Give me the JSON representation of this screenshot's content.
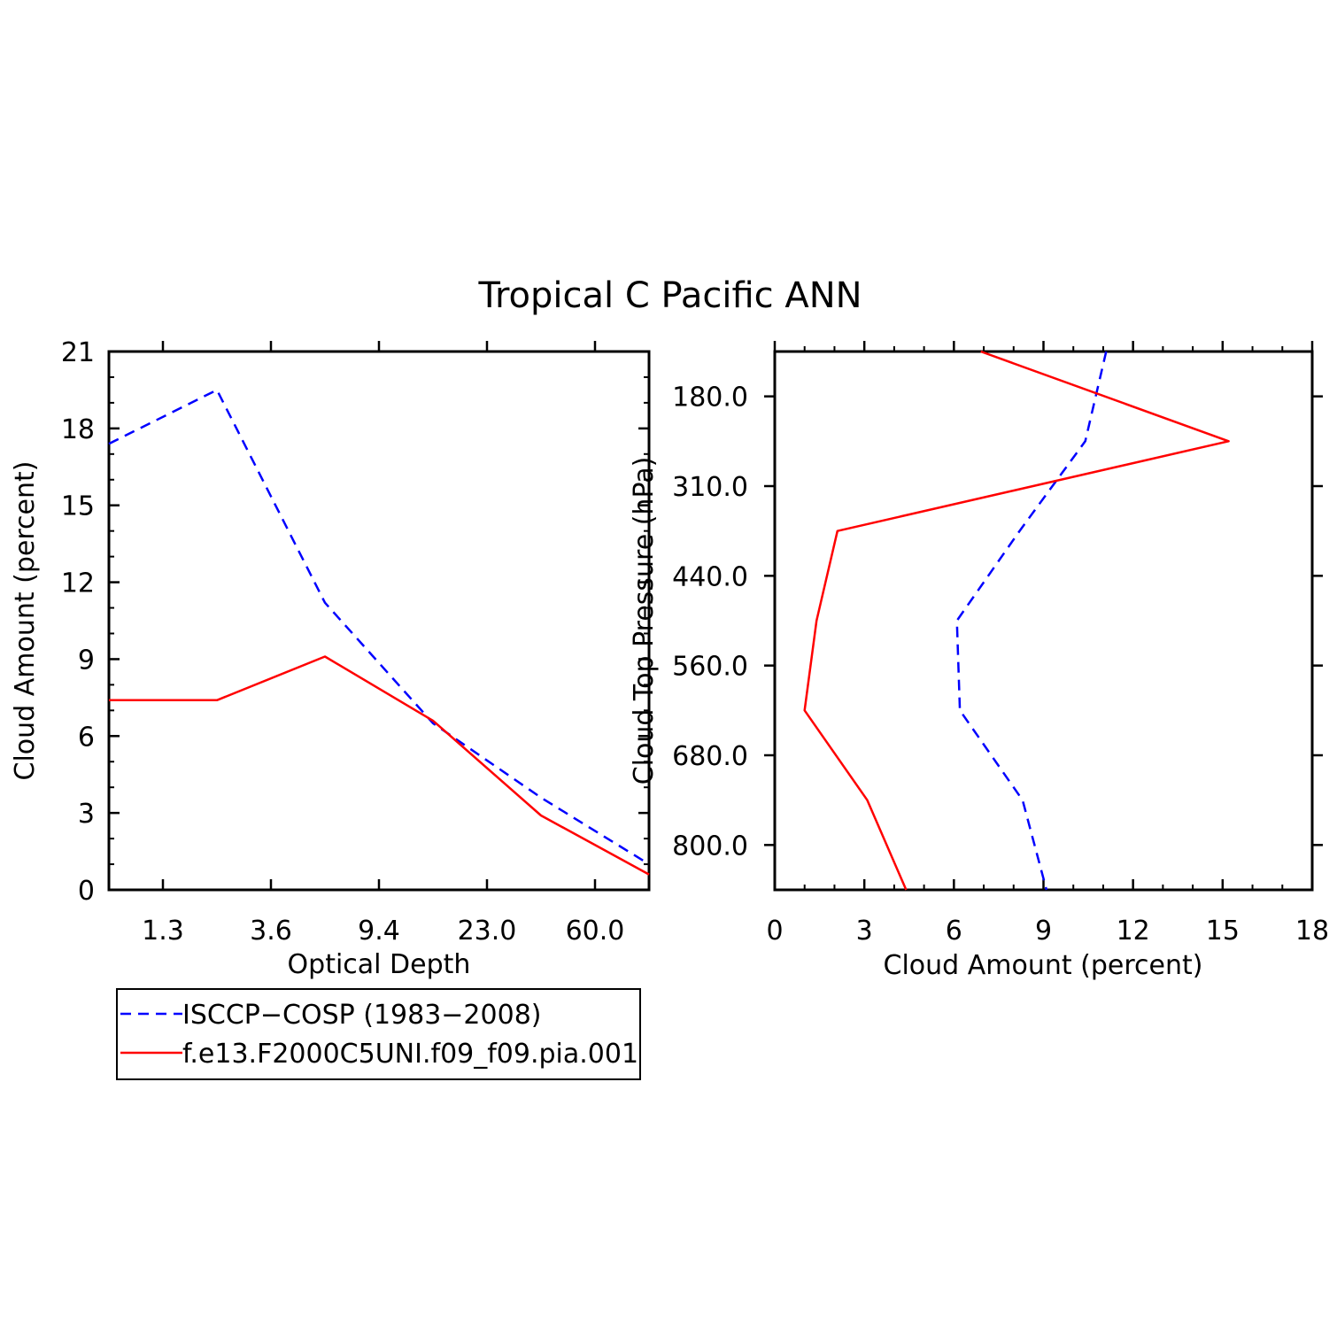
{
  "title": "Tropical C Pacific ANN",
  "colors": {
    "obs": "#0000ff",
    "model": "#ff0000",
    "axis": "#000000"
  },
  "legend": {
    "entries": [
      {
        "label": "ISCCP−COSP (1983−2008)",
        "color": "#0000ff",
        "style": "dashed"
      },
      {
        "label": "f.e13.F2000C5UNI.f09_f09.pia.001",
        "color": "#ff0000",
        "style": "solid"
      }
    ]
  },
  "chart_data": [
    {
      "type": "line",
      "title": "Tropical C Pacific ANN",
      "xlabel": "Optical Depth",
      "ylabel": "Cloud Amount (percent)",
      "x_categories": [
        "1.3",
        "3.6",
        "9.4",
        "23.0",
        "60.0"
      ],
      "x_index_range": [
        0,
        5
      ],
      "ylim": [
        0,
        21
      ],
      "y_ticks": [
        0,
        3,
        6,
        9,
        12,
        15,
        18,
        21
      ],
      "series": [
        {
          "name": "ISCCP−COSP (1983−2008)",
          "x": [
            0,
            1,
            2,
            3,
            4,
            5
          ],
          "values": [
            17.4,
            19.5,
            11.2,
            6.5,
            3.6,
            1.0
          ]
        },
        {
          "name": "f.e13.F2000C5UNI.f09_f09.pia.001",
          "x": [
            0,
            1,
            2,
            3,
            4,
            5
          ],
          "values": [
            7.4,
            7.4,
            9.1,
            6.6,
            2.9,
            0.6
          ]
        }
      ]
    },
    {
      "type": "line",
      "xlabel": "Cloud Amount (percent)",
      "ylabel": "Cloud Top Pressure (hPa)",
      "xlim": [
        0,
        18
      ],
      "x_ticks": [
        0,
        3,
        6,
        9,
        12,
        15,
        18
      ],
      "y_categories": [
        "180.0",
        "310.0",
        "440.0",
        "560.0",
        "680.0",
        "800.0"
      ],
      "y_index_range": [
        0,
        6
      ],
      "series": [
        {
          "name": "ISCCP−COSP (1983−2008)",
          "level_index": [
            0,
            1,
            2,
            3,
            4,
            5,
            6
          ],
          "values": [
            11.1,
            10.4,
            8.2,
            6.1,
            6.2,
            8.3,
            9.1
          ]
        },
        {
          "name": "f.e13.F2000C5UNI.f09_f09.pia.001",
          "level_index": [
            0,
            1,
            2,
            3,
            4,
            5,
            6
          ],
          "values": [
            6.9,
            15.2,
            2.1,
            1.4,
            1.0,
            3.1,
            4.4
          ]
        }
      ]
    }
  ]
}
